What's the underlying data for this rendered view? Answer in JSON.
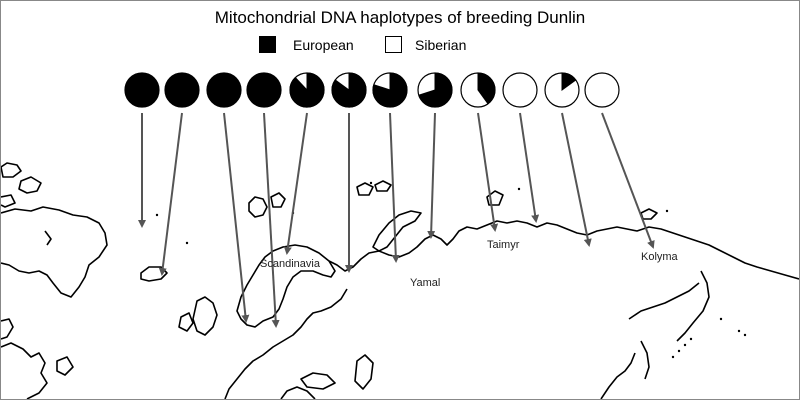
{
  "title": "Mitochondrial DNA haplotypes of breeding Dunlin",
  "legend": [
    {
      "label": "European",
      "color": "#000000"
    },
    {
      "label": "Siberian",
      "color": "#ffffff"
    }
  ],
  "colors": {
    "european": "#000000",
    "siberian": "#ffffff",
    "coastline": "#000000",
    "arrow": "#555555"
  },
  "place_labels": [
    "Scandinavia",
    "Yamal",
    "Taimyr",
    "Kolyma"
  ],
  "populations": [
    {
      "european_fraction": 1.0
    },
    {
      "european_fraction": 1.0
    },
    {
      "european_fraction": 1.0
    },
    {
      "european_fraction": 1.0
    },
    {
      "european_fraction": 0.88
    },
    {
      "european_fraction": 0.85
    },
    {
      "european_fraction": 0.8
    },
    {
      "european_fraction": 0.7
    },
    {
      "european_fraction": 0.4
    },
    {
      "european_fraction": 0.0
    },
    {
      "european_fraction": 0.15
    },
    {
      "european_fraction": 0.0
    }
  ]
}
